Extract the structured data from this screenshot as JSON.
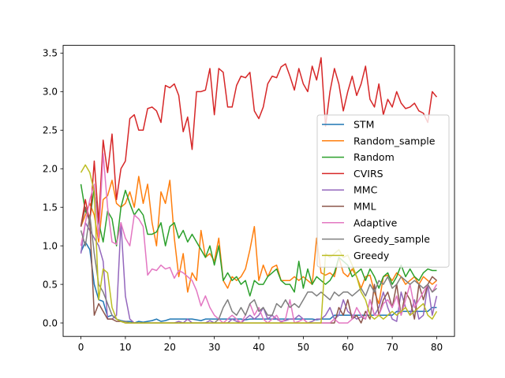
{
  "chart_data": {
    "type": "line",
    "title": "",
    "xlabel": "",
    "ylabel": "",
    "xlim": [
      -4,
      84
    ],
    "ylim": [
      -0.175,
      3.6
    ],
    "xticks": [
      0,
      10,
      20,
      30,
      40,
      50,
      60,
      70,
      80
    ],
    "yticks": [
      0.0,
      0.5,
      1.0,
      1.5,
      2.0,
      2.5,
      3.0,
      3.5
    ],
    "grid": false,
    "legend": "center-right",
    "series": [
      {
        "name": "STM",
        "color": "#1f77b4",
        "values": [
          0.92,
          1.05,
          0.95,
          0.5,
          0.3,
          0.28,
          0.08,
          0.1,
          0.05,
          0.03,
          0.02,
          0.02,
          0.0,
          0.02,
          0.01,
          0.02,
          0.03,
          0.05,
          0.02,
          0.03,
          0.05,
          0.05,
          0.05,
          0.05,
          0.05,
          0.05,
          0.04,
          0.03,
          0.05,
          0.05,
          0.05,
          0.05,
          0.05,
          0.05,
          0.05,
          0.05,
          0.05,
          0.04,
          0.05,
          0.05,
          0.05,
          0.05,
          0.05,
          0.05,
          0.05,
          0.05,
          0.05,
          0.05,
          0.05,
          0.05,
          0.05,
          0.05,
          0.05,
          0.04,
          0.05,
          0.05,
          0.05,
          0.1,
          0.1,
          0.1,
          0.1,
          0.1,
          0.1,
          0.1,
          0.1,
          0.1,
          0.1,
          0.1,
          0.1,
          0.1,
          0.1,
          0.15,
          0.15,
          0.15,
          0.15,
          0.15,
          0.15,
          0.15,
          0.15,
          0.2,
          0.2
        ]
      },
      {
        "name": "Random_sample",
        "color": "#ff7f0e",
        "values": [
          1.25,
          1.4,
          1.55,
          1.4,
          1.05,
          1.6,
          1.65,
          1.85,
          1.55,
          1.5,
          1.55,
          1.7,
          1.5,
          1.9,
          1.55,
          1.8,
          1.3,
          1.0,
          1.7,
          1.55,
          1.85,
          1.1,
          0.6,
          0.9,
          0.4,
          0.65,
          0.55,
          1.2,
          0.85,
          0.9,
          0.8,
          1.1,
          0.55,
          0.45,
          0.6,
          0.55,
          0.6,
          0.7,
          0.95,
          1.25,
          0.55,
          0.75,
          0.6,
          0.72,
          0.75,
          0.55,
          0.55,
          0.55,
          0.6,
          0.55,
          0.6,
          0.55,
          0.5,
          1.1,
          0.65,
          0.62,
          0.65,
          0.6,
          0.85,
          0.65,
          0.6,
          0.7,
          0.6,
          0.45,
          0.6,
          0.62,
          0.4,
          0.25,
          0.6,
          0.62,
          0.55,
          0.65,
          0.6,
          0.5,
          0.55,
          0.6,
          0.5,
          0.6,
          0.55,
          0.5,
          0.55
        ]
      },
      {
        "name": "Random",
        "color": "#2ca02c",
        "values": [
          1.8,
          1.45,
          1.35,
          1.75,
          1.3,
          1.05,
          1.45,
          1.35,
          1.0,
          1.5,
          1.72,
          1.55,
          1.4,
          1.48,
          1.4,
          1.15,
          1.15,
          1.18,
          1.3,
          1.0,
          1.25,
          1.3,
          1.1,
          1.2,
          1.05,
          1.15,
          1.05,
          0.95,
          0.85,
          1.0,
          0.75,
          1.0,
          0.55,
          0.65,
          0.55,
          0.6,
          0.5,
          0.55,
          0.35,
          0.55,
          0.5,
          0.5,
          0.6,
          0.65,
          0.7,
          0.55,
          0.5,
          0.5,
          0.4,
          0.8,
          0.45,
          0.7,
          0.5,
          0.6,
          0.55,
          0.5,
          0.55,
          0.65,
          0.85,
          0.8,
          0.75,
          0.6,
          0.65,
          0.7,
          0.55,
          0.7,
          0.6,
          0.45,
          0.6,
          0.65,
          0.5,
          0.6,
          0.75,
          0.6,
          0.7,
          0.6,
          0.55,
          0.65,
          0.7,
          0.68,
          0.68
        ]
      },
      {
        "name": "CVIRS",
        "color": "#d62728",
        "values": [
          1.25,
          1.6,
          1.3,
          2.1,
          1.3,
          2.37,
          1.95,
          2.45,
          1.6,
          2.0,
          2.1,
          2.65,
          2.7,
          2.5,
          2.5,
          2.78,
          2.8,
          2.75,
          2.6,
          3.08,
          3.05,
          3.1,
          2.95,
          2.48,
          2.67,
          2.25,
          3.0,
          3.0,
          3.02,
          3.3,
          2.7,
          3.3,
          3.25,
          2.8,
          2.8,
          3.08,
          3.2,
          3.18,
          3.25,
          2.75,
          2.65,
          2.8,
          3.1,
          3.2,
          3.18,
          3.32,
          3.36,
          3.2,
          3.02,
          3.3,
          3.1,
          3.0,
          3.33,
          3.15,
          3.44,
          2.55,
          3.0,
          3.3,
          3.1,
          2.75,
          3.0,
          3.2,
          2.95,
          3.1,
          3.33,
          2.9,
          2.8,
          3.1,
          2.7,
          2.9,
          2.8,
          3.0,
          2.85,
          2.78,
          2.8,
          2.85,
          2.75,
          2.72,
          2.6,
          3.0,
          2.93
        ]
      },
      {
        "name": "MMC",
        "color": "#9467bd",
        "values": [
          0.9,
          1.3,
          1.2,
          1.1,
          1.0,
          0.8,
          0.05,
          0.05,
          0.1,
          1.3,
          0.35,
          0.05,
          0.0,
          0.0,
          0.0,
          0.0,
          0.0,
          0.0,
          0.0,
          0.0,
          0.0,
          0.0,
          0.02,
          0.0,
          0.05,
          0.0,
          0.0,
          0.0,
          0.0,
          0.03,
          0.0,
          0.0,
          0.0,
          0.0,
          0.05,
          0.02,
          0.0,
          0.05,
          0.1,
          0.05,
          0.1,
          0.2,
          0.05,
          0.1,
          0.05,
          0.02,
          0.03,
          0.05,
          0.05,
          0.1,
          0.05,
          0.0,
          0.02,
          0.05,
          0.05,
          0.1,
          0.2,
          0.05,
          0.1,
          0.3,
          0.15,
          0.1,
          0.05,
          0.08,
          0.05,
          0.3,
          0.1,
          0.2,
          0.4,
          0.2,
          0.05,
          0.02,
          0.4,
          0.2,
          0.1,
          0.3,
          0.05,
          0.1,
          0.5,
          0.1,
          0.35
        ]
      },
      {
        "name": "MML",
        "color": "#8c564b",
        "values": [
          1.25,
          1.5,
          1.3,
          0.1,
          0.25,
          0.15,
          0.05,
          0.05,
          0.02,
          0.02,
          0.0,
          0.0,
          0.0,
          0.0,
          0.0,
          0.0,
          0.0,
          0.0,
          0.0,
          0.0,
          0.0,
          0.0,
          0.0,
          0.0,
          0.0,
          0.0,
          0.0,
          0.0,
          0.0,
          0.0,
          0.0,
          0.0,
          0.0,
          0.0,
          0.0,
          0.0,
          0.0,
          0.0,
          0.0,
          0.0,
          0.0,
          0.0,
          0.0,
          0.0,
          0.0,
          0.0,
          0.0,
          0.0,
          0.0,
          0.0,
          0.0,
          0.0,
          0.0,
          0.0,
          0.0,
          0.0,
          0.0,
          0.0,
          0.2,
          0.1,
          0.3,
          0.05,
          0.1,
          0.0,
          0.15,
          0.05,
          0.5,
          0.1,
          0.3,
          0.4,
          0.2,
          0.5,
          0.1,
          0.4,
          0.3,
          0.05,
          0.5,
          0.3,
          0.5,
          0.6,
          0.55
        ]
      },
      {
        "name": "Adaptive",
        "color": "#e377c2",
        "values": [
          1.0,
          1.3,
          1.6,
          1.8,
          1.1,
          2.2,
          1.5,
          1.05,
          1.02,
          1.3,
          1.1,
          1.0,
          1.4,
          1.35,
          1.25,
          0.62,
          0.7,
          0.68,
          0.75,
          0.7,
          0.72,
          0.58,
          0.68,
          0.65,
          0.6,
          0.55,
          0.42,
          0.22,
          0.35,
          0.2,
          0.1,
          0.05,
          0.0,
          0.05,
          0.1,
          0.05,
          0.0,
          0.1,
          0.25,
          0.1,
          0.2,
          0.05,
          0.0,
          0.05,
          0.1,
          0.0,
          0.05,
          0.3,
          0.0,
          0.02,
          0.05,
          0.0,
          0.0,
          0.0,
          0.0,
          0.0,
          0.0,
          0.05,
          0.0,
          0.0,
          0.0,
          0.05,
          0.2,
          0.1,
          0.05,
          0.3,
          0.1,
          0.1,
          0.25,
          0.3,
          0.2,
          0.35,
          0.1,
          0.3,
          0.5,
          0.2,
          0.3,
          0.4,
          0.5,
          0.4,
          0.5
        ]
      },
      {
        "name": "Greedy_sample",
        "color": "#7f7f7f",
        "values": [
          1.2,
          1.0,
          1.4,
          0.9,
          0.5,
          0.4,
          0.25,
          0.1,
          0.05,
          0.02,
          0.02,
          0.0,
          0.0,
          0.0,
          0.0,
          0.0,
          0.0,
          0.0,
          0.0,
          0.0,
          0.0,
          0.0,
          0.0,
          0.0,
          0.0,
          0.0,
          0.0,
          0.0,
          0.0,
          0.0,
          0.0,
          0.05,
          0.2,
          0.3,
          0.15,
          0.1,
          0.2,
          0.1,
          0.25,
          0.3,
          0.15,
          0.2,
          0.1,
          0.1,
          0.25,
          0.2,
          0.3,
          0.2,
          0.25,
          0.2,
          0.3,
          0.4,
          0.4,
          0.35,
          0.4,
          0.35,
          0.3,
          0.4,
          0.35,
          0.4,
          0.4,
          0.35,
          0.4,
          0.45,
          0.35,
          0.5,
          0.4,
          0.55,
          0.5,
          0.6,
          0.45,
          0.5,
          0.6,
          0.55,
          0.5,
          0.55,
          0.5,
          0.45,
          0.5,
          0.4,
          0.45
        ]
      },
      {
        "name": "Greedy",
        "color": "#bcbd22",
        "values": [
          1.95,
          2.05,
          1.95,
          1.7,
          0.3,
          0.7,
          0.65,
          0.2,
          0.05,
          0.02,
          0.0,
          0.0,
          0.0,
          0.0,
          0.0,
          0.0,
          0.0,
          0.0,
          0.0,
          0.0,
          0.0,
          0.0,
          0.0,
          0.0,
          0.0,
          0.0,
          0.0,
          0.0,
          0.0,
          0.0,
          0.0,
          0.0,
          0.0,
          0.0,
          0.0,
          0.0,
          0.0,
          0.0,
          0.0,
          0.0,
          0.0,
          0.0,
          0.0,
          0.0,
          0.0,
          0.0,
          0.0,
          0.0,
          0.0,
          0.0,
          0.0,
          0.0,
          0.0,
          0.0,
          0.0,
          0.9,
          0.85,
          0.9,
          0.95,
          0.85,
          0.88,
          0.75,
          0.6,
          0.4,
          0.3,
          0.1,
          0.05,
          0.1,
          0.05,
          0.1,
          0.15,
          0.1,
          0.15,
          0.2,
          0.1,
          0.15,
          0.2,
          0.25,
          0.1,
          0.05,
          0.15
        ]
      }
    ]
  }
}
